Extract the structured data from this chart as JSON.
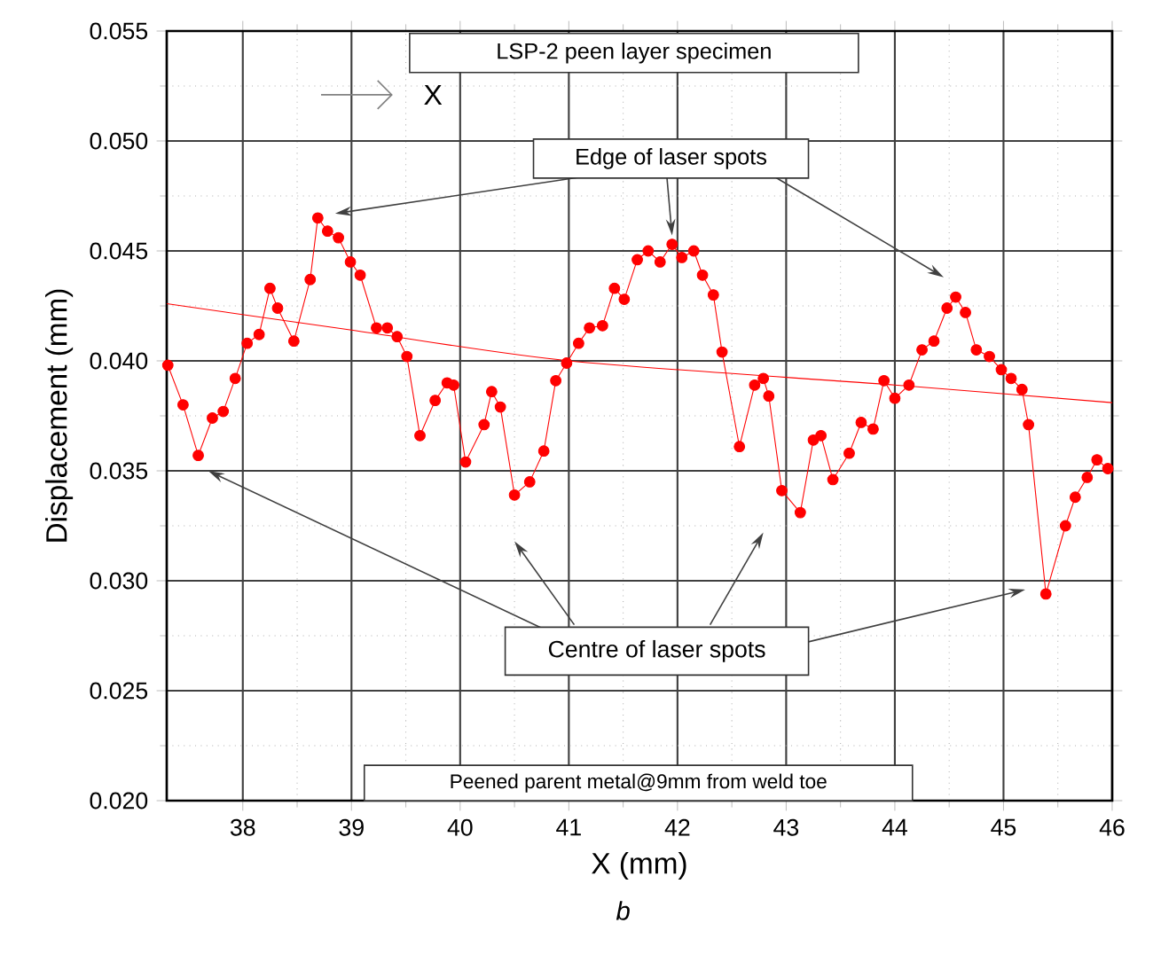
{
  "chart_data": {
    "type": "line",
    "xlabel": "X (mm)",
    "ylabel": "Displacement (mm)",
    "xlim": [
      37.3,
      46
    ],
    "xticks": [
      38,
      39,
      40,
      41,
      42,
      43,
      44,
      45,
      46
    ],
    "ylim": [
      0.02,
      0.055
    ],
    "yticks": [
      {
        "value": 0.02,
        "label": "0.020"
      },
      {
        "value": 0.025,
        "label": "0.025"
      },
      {
        "value": 0.03,
        "label": "0.030"
      },
      {
        "value": 0.035,
        "label": "0.035"
      },
      {
        "value": 0.04,
        "label": "0.040"
      },
      {
        "value": 0.045,
        "label": "0.045"
      },
      {
        "value": 0.05,
        "label": "0.050"
      },
      {
        "value": 0.055,
        "label": "0.055"
      }
    ],
    "grid": true,
    "series": [
      {
        "color": "#ff0000",
        "marker": "circle",
        "x": [
          37.31,
          37.45,
          37.59,
          37.72,
          37.82,
          37.93,
          38.04,
          38.15,
          38.25,
          38.32,
          38.47,
          38.62,
          38.69,
          38.78,
          38.88,
          38.99,
          39.08,
          39.23,
          39.33,
          39.42,
          39.51,
          39.63,
          39.77,
          39.88,
          39.94,
          40.05,
          40.22,
          40.29,
          40.37,
          40.5,
          40.64,
          40.77,
          40.88,
          40.98,
          41.09,
          41.19,
          41.31,
          41.42,
          41.51,
          41.63,
          41.73,
          41.84,
          41.95,
          42.04,
          42.15,
          42.23,
          42.33,
          42.41,
          42.57,
          42.71,
          42.79,
          42.84,
          42.96,
          43.13,
          43.25,
          43.32,
          43.43,
          43.58,
          43.69,
          43.8,
          43.9,
          44.0,
          44.13,
          44.25,
          44.36,
          44.48,
          44.56,
          44.65,
          44.75,
          44.87,
          44.98,
          45.07,
          45.17,
          45.23,
          45.39,
          45.57,
          45.66,
          45.77,
          45.86,
          45.96
        ],
        "values": [
          0.0398,
          0.038,
          0.0357,
          0.0374,
          0.0377,
          0.0392,
          0.0408,
          0.0412,
          0.0433,
          0.0424,
          0.0409,
          0.0437,
          0.0465,
          0.0459,
          0.0456,
          0.0445,
          0.0439,
          0.0415,
          0.0415,
          0.0411,
          0.0402,
          0.0366,
          0.0382,
          0.039,
          0.0389,
          0.0354,
          0.0371,
          0.0386,
          0.0379,
          0.0339,
          0.0345,
          0.0359,
          0.0391,
          0.0399,
          0.0408,
          0.0415,
          0.0416,
          0.0433,
          0.0428,
          0.0446,
          0.045,
          0.0445,
          0.0453,
          0.0447,
          0.045,
          0.0439,
          0.043,
          0.0404,
          0.0361,
          0.0389,
          0.0392,
          0.0384,
          0.0341,
          0.0331,
          0.0364,
          0.0366,
          0.0346,
          0.0358,
          0.0372,
          0.0369,
          0.0391,
          0.0383,
          0.0389,
          0.0405,
          0.0409,
          0.0424,
          0.0429,
          0.0422,
          0.0405,
          0.0402,
          0.0396,
          0.0392,
          0.0387,
          0.0371,
          0.0294,
          0.0325,
          0.0338,
          0.0347,
          0.0355,
          0.0351
        ]
      },
      {
        "color": "#ff0000",
        "marker": "none",
        "x": [
          37.3,
          39,
          41,
          44,
          46
        ],
        "values": [
          0.0426,
          0.0414,
          0.04,
          0.0389,
          0.0381
        ]
      }
    ],
    "annotations": [
      "LSP-2 peen layer specimen",
      "X",
      {
        "text": "Edge of laser spots",
        "x": 41.95,
        "y": 0.0457
      },
      "Centre of laser spots",
      "Peened parent metal@9mm from weld toe",
      "*b*"
    ]
  }
}
